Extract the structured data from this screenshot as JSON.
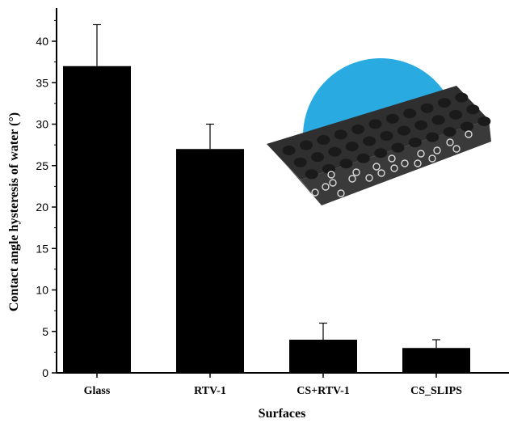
{
  "chart_data": {
    "type": "bar",
    "title": "",
    "xlabel": "Surfaces",
    "ylabel": "Contact angle hysteresis of water (°)",
    "categories": [
      "Glass",
      "RTV-1",
      "CS+RTV-1",
      "CS_SLIPS"
    ],
    "values": [
      37,
      27,
      4,
      3
    ],
    "error": [
      5,
      3,
      2,
      1
    ],
    "ylim": [
      0,
      44
    ],
    "yticks": [
      "0",
      "5",
      "10",
      "15",
      "20",
      "25",
      "30",
      "35",
      "40"
    ],
    "ytick_values": [
      0,
      5,
      10,
      15,
      20,
      25,
      30,
      35,
      40
    ],
    "bar_color": "#000000",
    "grid": false,
    "inset": {
      "description_icon": "water-droplet-on-porous-surface-icon",
      "droplet_color": "#29ABE2",
      "surface_color": "#3a3a3a"
    }
  }
}
